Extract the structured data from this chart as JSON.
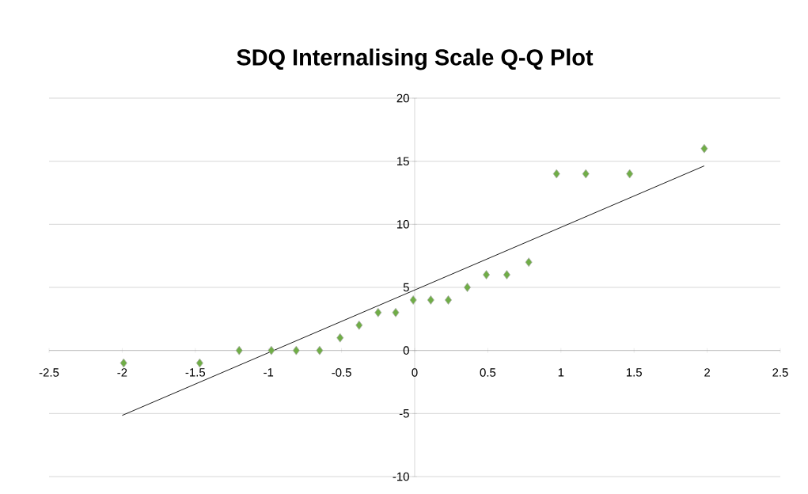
{
  "chart_data": {
    "type": "scatter",
    "title": "SDQ Internalising Scale Q-Q Plot",
    "xlim": [
      -2.5,
      2.5
    ],
    "ylim": [
      -10,
      20
    ],
    "xticks": [
      -2.5,
      -2,
      -1.5,
      -1,
      -0.5,
      0,
      0.5,
      1,
      1.5,
      2,
      2.5
    ],
    "yticks": [
      -10,
      -5,
      0,
      5,
      10,
      15,
      20
    ],
    "grid": "y",
    "marker": "diamond",
    "series": [
      {
        "color": "#70ad47",
        "x": [
          -1.99,
          -1.47,
          -1.2,
          -0.98,
          -0.81,
          -0.65,
          -0.51,
          -0.38,
          -0.25,
          -0.13,
          -0.01,
          0.11,
          0.23,
          0.36,
          0.49,
          0.63,
          0.78,
          0.97,
          1.17,
          1.47,
          1.98
        ],
        "values": [
          -1,
          -1,
          0,
          0,
          0,
          0,
          1,
          2,
          3,
          3,
          4,
          4,
          4,
          5,
          6,
          6,
          7,
          14,
          14,
          14,
          16
        ]
      },
      {
        "type": "line",
        "color": "#000000",
        "marker": "none",
        "x": [
          -2,
          1.98
        ],
        "values": [
          -5.15,
          14.63
        ]
      }
    ]
  }
}
